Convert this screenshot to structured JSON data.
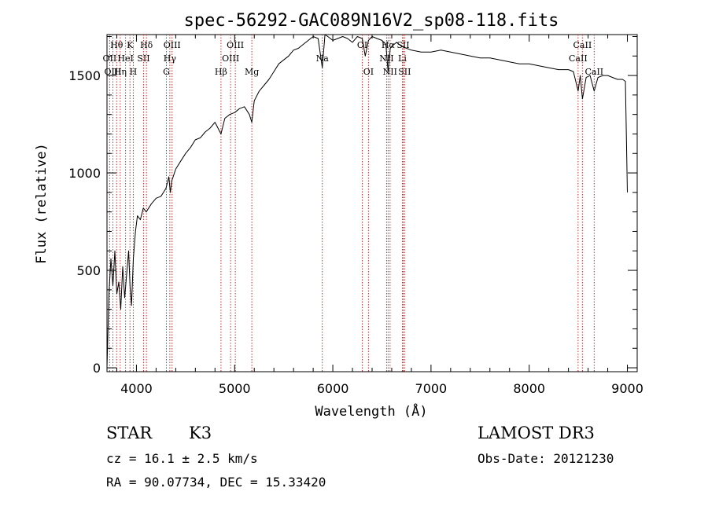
{
  "chart_data": {
    "type": "line",
    "title": "spec-56292-GAC089N16V2_sp08-118.fits",
    "xlabel": "Wavelength (Å)",
    "ylabel": "Flux (relative)",
    "xlim": [
      3700,
      9100
    ],
    "ylim": [
      -20,
      1710
    ],
    "x_ticks": [
      4000,
      5000,
      6000,
      7000,
      8000,
      9000
    ],
    "x_tick_labels": [
      "4000",
      "5000",
      "6000",
      "7000",
      "8000",
      "9000"
    ],
    "y_ticks": [
      0,
      500,
      1000,
      1500
    ],
    "y_tick_labels": [
      "0",
      "500",
      "1000",
      "1500"
    ],
    "series": [
      {
        "name": "flux",
        "x": [
          3700,
          3720,
          3740,
          3760,
          3780,
          3800,
          3820,
          3840,
          3860,
          3880,
          3900,
          3920,
          3935,
          3950,
          3968,
          3990,
          4010,
          4040,
          4070,
          4100,
          4150,
          4200,
          4250,
          4300,
          4330,
          4345,
          4360,
          4400,
          4450,
          4500,
          4550,
          4600,
          4650,
          4700,
          4750,
          4800,
          4861,
          4900,
          4950,
          5000,
          5050,
          5100,
          5150,
          5175,
          5200,
          5250,
          5300,
          5350,
          5400,
          5450,
          5500,
          5550,
          5600,
          5650,
          5700,
          5750,
          5800,
          5850,
          5893,
          5920,
          5950,
          6000,
          6050,
          6100,
          6150,
          6200,
          6250,
          6300,
          6330,
          6363,
          6400,
          6450,
          6500,
          6540,
          6563,
          6585,
          6600,
          6650,
          6700,
          6750,
          6800,
          6900,
          7000,
          7100,
          7200,
          7300,
          7400,
          7500,
          7600,
          7700,
          7800,
          7900,
          8000,
          8100,
          8200,
          8300,
          8400,
          8450,
          8498,
          8520,
          8542,
          8580,
          8620,
          8662,
          8700,
          8750,
          8800,
          8850,
          8900,
          8950,
          8980,
          9000
        ],
        "y": [
          0,
          380,
          560,
          420,
          600,
          380,
          440,
          300,
          520,
          360,
          480,
          600,
          420,
          320,
          560,
          700,
          780,
          760,
          820,
          800,
          840,
          870,
          880,
          920,
          980,
          900,
          960,
          1020,
          1060,
          1100,
          1130,
          1170,
          1180,
          1210,
          1230,
          1260,
          1200,
          1280,
          1300,
          1310,
          1330,
          1340,
          1300,
          1260,
          1370,
          1420,
          1450,
          1480,
          1520,
          1560,
          1580,
          1600,
          1630,
          1640,
          1660,
          1680,
          1700,
          1690,
          1540,
          1710,
          1700,
          1680,
          1690,
          1700,
          1690,
          1670,
          1700,
          1690,
          1600,
          1680,
          1700,
          1690,
          1680,
          1660,
          1520,
          1640,
          1650,
          1670,
          1650,
          1640,
          1630,
          1620,
          1620,
          1630,
          1620,
          1610,
          1600,
          1590,
          1590,
          1580,
          1570,
          1560,
          1560,
          1550,
          1540,
          1530,
          1530,
          1520,
          1420,
          1500,
          1380,
          1490,
          1500,
          1420,
          1490,
          1500,
          1500,
          1490,
          1480,
          1480,
          1470,
          900
        ]
      }
    ],
    "lines": [
      {
        "name": "Hθ",
        "wavelength": 3798,
        "row": 0
      },
      {
        "name": "OII",
        "wavelength": 3727,
        "row": 1
      },
      {
        "name": "OIII",
        "wavelength": 3760,
        "row": 2
      },
      {
        "name": "K",
        "wavelength": 3934,
        "row": 0
      },
      {
        "name": "HeI",
        "wavelength": 3889,
        "row": 1
      },
      {
        "name": "Hη",
        "wavelength": 3835,
        "row": 2
      },
      {
        "name": "Hδ",
        "wavelength": 4102,
        "row": 0
      },
      {
        "name": "SII",
        "wavelength": 4072,
        "row": 1
      },
      {
        "name": "H",
        "wavelength": 3968,
        "row": 2
      },
      {
        "name": "OIII",
        "wavelength": 4363,
        "row": 0
      },
      {
        "name": "Hγ",
        "wavelength": 4340,
        "row": 1
      },
      {
        "name": "G",
        "wavelength": 4305,
        "row": 2
      },
      {
        "name": "OIII",
        "wavelength": 5007,
        "row": 0
      },
      {
        "name": "OIII",
        "wavelength": 4959,
        "row": 1
      },
      {
        "name": "Hβ",
        "wavelength": 4861,
        "row": 2
      },
      {
        "name": "Mg",
        "wavelength": 5175,
        "row": 2
      },
      {
        "name": "Na",
        "wavelength": 5893,
        "row": 1
      },
      {
        "name": "OI",
        "wavelength": 6300,
        "row": 0
      },
      {
        "name": "OI",
        "wavelength": 6363,
        "row": 2
      },
      {
        "name": "Hα",
        "wavelength": 6563,
        "row": 0
      },
      {
        "name": "SII",
        "wavelength": 6716,
        "row": 0
      },
      {
        "name": "NII",
        "wavelength": 6548,
        "row": 1
      },
      {
        "name": "Li",
        "wavelength": 6708,
        "row": 1
      },
      {
        "name": "NII",
        "wavelength": 6583,
        "row": 2
      },
      {
        "name": "SII",
        "wavelength": 6731,
        "row": 2
      },
      {
        "name": "CaII",
        "wavelength": 8542,
        "row": 0
      },
      {
        "name": "CaII",
        "wavelength": 8498,
        "row": 1
      },
      {
        "name": "CaII",
        "wavelength": 8662,
        "row": 2
      }
    ]
  },
  "info": {
    "class": "STAR",
    "subclass": "K3",
    "survey": "LAMOST DR3",
    "cz": "cz = 16.1 ± 2.5 km/s",
    "obs_date": "Obs-Date: 20121230",
    "radec": "RA =  90.07734, DEC =  15.33420"
  },
  "colors": {
    "line_marker": "#c83232",
    "spectrum": "#000000"
  }
}
